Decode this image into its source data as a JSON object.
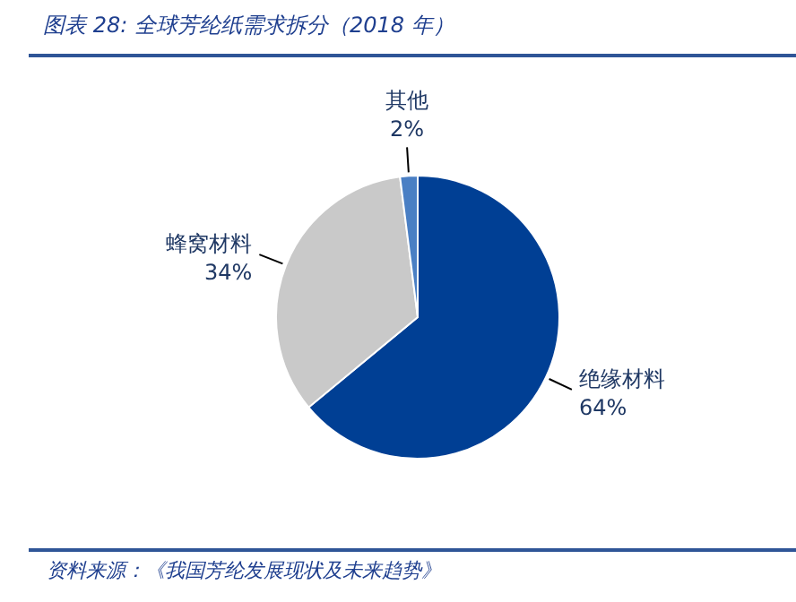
{
  "chart_data": {
    "type": "pie",
    "title": "图表 28:  全球芳纶纸需求拆分（2018 年）",
    "categories": [
      "绝缘材料",
      "蜂窝材料",
      "其他"
    ],
    "values": [
      64,
      34,
      2
    ],
    "value_labels": [
      "64%",
      "34%",
      "2%"
    ],
    "colors": [
      "#003f94",
      "#c9c9c9",
      "#4a7fc4"
    ],
    "annotations": [
      "资料来源：《我国芳纶发展现状及未来趋势》"
    ]
  }
}
